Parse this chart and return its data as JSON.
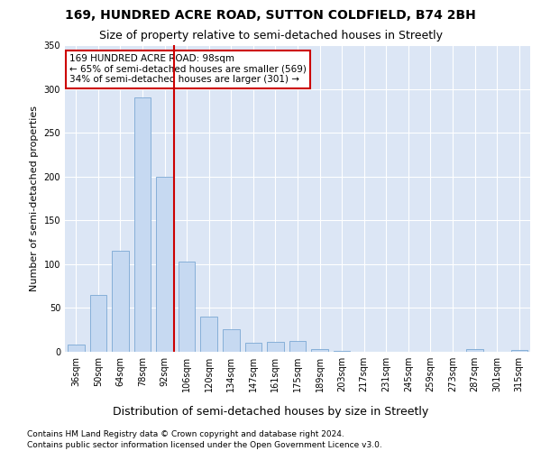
{
  "title": "169, HUNDRED ACRE ROAD, SUTTON COLDFIELD, B74 2BH",
  "subtitle": "Size of property relative to semi-detached houses in Streetly",
  "xlabel": "Distribution of semi-detached houses by size in Streetly",
  "ylabel": "Number of semi-detached properties",
  "categories": [
    "36sqm",
    "50sqm",
    "64sqm",
    "78sqm",
    "92sqm",
    "106sqm",
    "120sqm",
    "134sqm",
    "147sqm",
    "161sqm",
    "175sqm",
    "189sqm",
    "203sqm",
    "217sqm",
    "231sqm",
    "245sqm",
    "259sqm",
    "273sqm",
    "287sqm",
    "301sqm",
    "315sqm"
  ],
  "values": [
    8,
    65,
    115,
    290,
    200,
    103,
    40,
    26,
    10,
    11,
    12,
    3,
    1,
    0,
    0,
    0,
    0,
    0,
    3,
    0,
    2
  ],
  "bar_color": "#c6d9f1",
  "bar_edge_color": "#7aa8d4",
  "property_line_label": "169 HUNDRED ACRE ROAD: 98sqm",
  "annotation_line1": "← 65% of semi-detached houses are smaller (569)",
  "annotation_line2": "34% of semi-detached houses are larger (301) →",
  "vline_color": "#cc0000",
  "annotation_box_color": "#ffffff",
  "annotation_box_edge": "#cc0000",
  "background_color": "#ffffff",
  "plot_bg_color": "#dce6f5",
  "grid_color": "#ffffff",
  "ylim": [
    0,
    350
  ],
  "yticks": [
    0,
    50,
    100,
    150,
    200,
    250,
    300,
    350
  ],
  "footer1": "Contains HM Land Registry data © Crown copyright and database right 2024.",
  "footer2": "Contains public sector information licensed under the Open Government Licence v3.0.",
  "title_fontsize": 10,
  "subtitle_fontsize": 9,
  "xlabel_fontsize": 9,
  "ylabel_fontsize": 8,
  "tick_fontsize": 7,
  "annotation_fontsize": 7.5,
  "footer_fontsize": 6.5,
  "bar_width": 0.75,
  "vline_x_index": 4.43
}
